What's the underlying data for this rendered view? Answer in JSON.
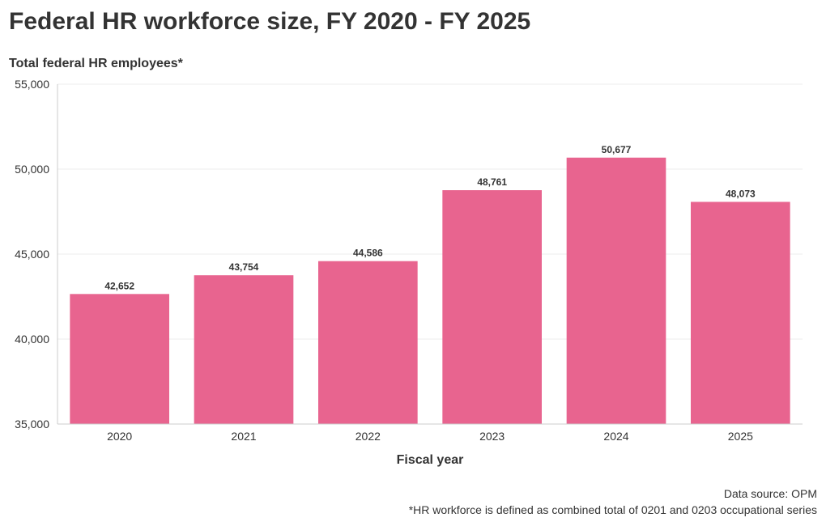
{
  "title": "Federal HR workforce size, FY 2020 - FY 2025",
  "footer": {
    "source": "Data source: OPM",
    "note": "*HR workforce is defined as combined total of 0201 and 0203 occupational series"
  },
  "colors": {
    "bar": "#e8648f",
    "grid": "#eeeeee",
    "axis": "#cccccc",
    "text": "#333333"
  },
  "chart_data": {
    "type": "bar",
    "title": "Federal HR workforce size, FY 2020 - FY 2025",
    "ylabel": "Total federal HR employees*",
    "xlabel": "Fiscal year",
    "categories": [
      "2020",
      "2021",
      "2022",
      "2023",
      "2024",
      "2025"
    ],
    "values": [
      42652,
      43754,
      44586,
      48761,
      50677,
      48073
    ],
    "value_labels": [
      "42,652",
      "43,754",
      "44,586",
      "48,761",
      "50,677",
      "48,073"
    ],
    "ylim": [
      35000,
      55000
    ],
    "yticks": [
      35000,
      40000,
      45000,
      50000,
      55000
    ],
    "ytick_labels": [
      "35,000",
      "40,000",
      "45,000",
      "50,000",
      "55,000"
    ],
    "grid": true,
    "legend": "none"
  }
}
